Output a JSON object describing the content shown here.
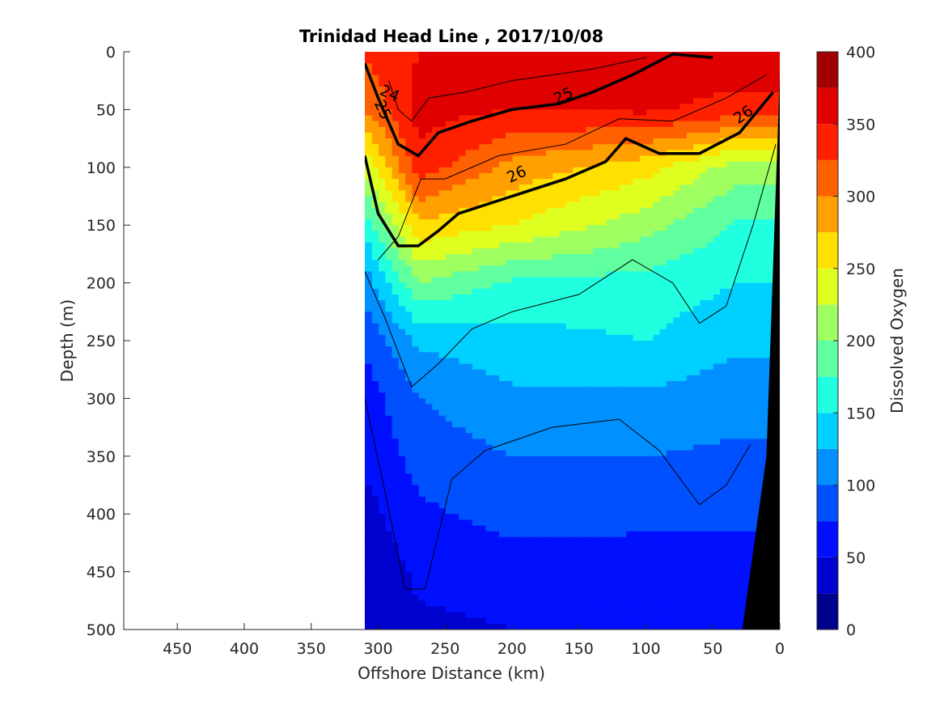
{
  "chart_data": {
    "type": "heatmap",
    "title": "Trinidad Head Line , 2017/10/08",
    "xlabel": "Offshore Distance (km)",
    "ylabel": "Depth (m)",
    "xlim": [
      490,
      0
    ],
    "ylim": [
      500,
      0
    ],
    "x_reversed": true,
    "y_reversed": true,
    "x_ticks": [
      450,
      400,
      350,
      300,
      250,
      200,
      150,
      100,
      50,
      0
    ],
    "y_ticks": [
      0,
      50,
      100,
      150,
      200,
      250,
      300,
      350,
      400,
      450,
      500
    ],
    "colorbar": {
      "label": "Dissolved Oxygen",
      "range": [
        0,
        400
      ],
      "ticks": [
        0,
        50,
        100,
        150,
        200,
        250,
        300,
        350,
        400
      ],
      "levels": [
        0,
        25,
        50,
        75,
        100,
        125,
        150,
        175,
        200,
        225,
        250,
        275,
        300,
        325,
        350,
        375,
        400
      ],
      "colors": [
        "#00008f",
        "#0000cf",
        "#0010ff",
        "#0050ff",
        "#0090ff",
        "#00d0ff",
        "#20ffdf",
        "#60ff9f",
        "#9fff60",
        "#dfff20",
        "#ffe000",
        "#ffa000",
        "#ff6000",
        "#ff2000",
        "#df0000",
        "#a00000"
      ]
    },
    "data_extent_km": [
      0,
      310
    ],
    "depth_range_m": [
      0,
      500
    ],
    "oxygen_profile": {
      "depth_m": [
        0,
        50,
        100,
        150,
        200,
        250,
        300,
        350,
        400,
        450,
        500
      ],
      "station_km": [
        310,
        270,
        200,
        100,
        30
      ],
      "oxygen": [
        [
          330,
          350,
          355,
          360,
          370
        ],
        [
          300,
          360,
          350,
          355,
          340
        ],
        [
          230,
          340,
          290,
          260,
          210
        ],
        [
          160,
          270,
          250,
          210,
          170
        ],
        [
          110,
          200,
          170,
          165,
          150
        ],
        [
          80,
          130,
          140,
          150,
          130
        ],
        [
          60,
          100,
          120,
          120,
          110
        ],
        [
          55,
          85,
          100,
          100,
          95
        ],
        [
          40,
          70,
          85,
          80,
          80
        ],
        [
          30,
          55,
          60,
          65,
          60
        ],
        [
          25,
          45,
          50,
          55,
          50
        ]
      ]
    },
    "density_contours": [
      {
        "label": "24",
        "bold": false
      },
      {
        "label": "25",
        "bold": true
      },
      {
        "label": "26",
        "bold": true
      }
    ]
  }
}
